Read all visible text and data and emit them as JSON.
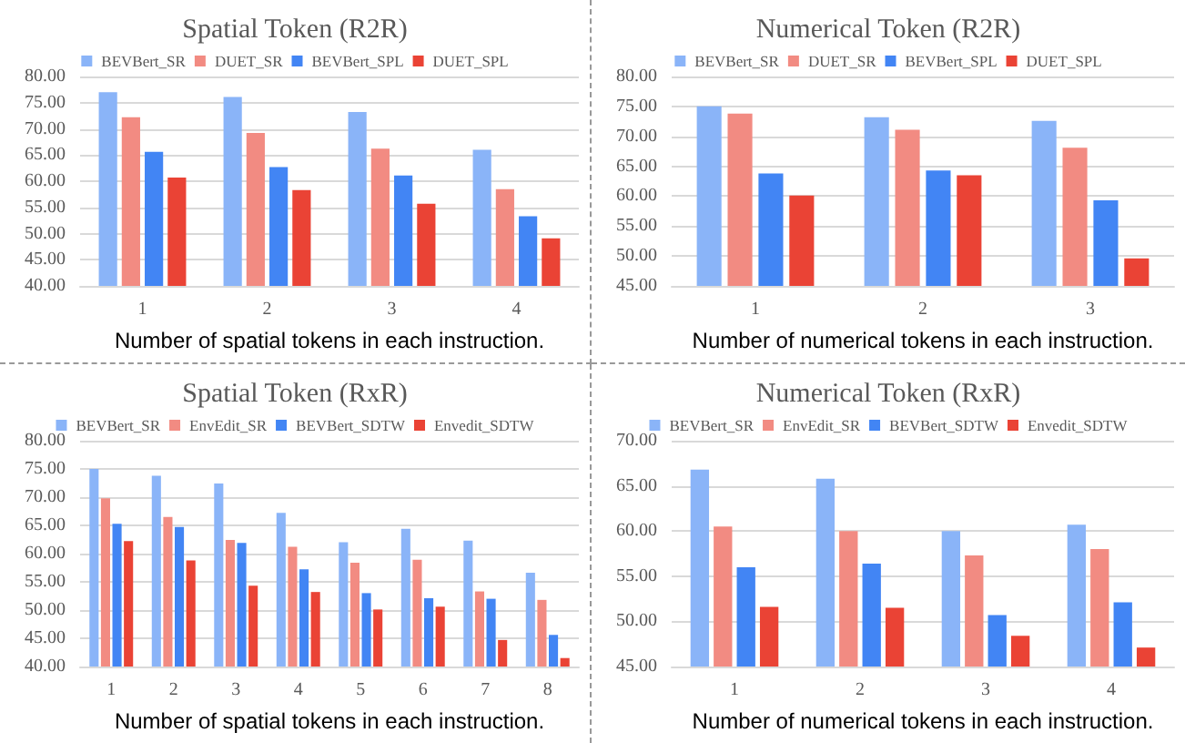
{
  "chart_data": [
    {
      "type": "bar",
      "title": "Spatial Token (R2R)",
      "xlabel": "Number of spatial tokens in each instruction.",
      "categories": [
        "1",
        "2",
        "3",
        "4"
      ],
      "series": [
        {
          "name": "BEVBert_SR",
          "color": "#8ab4f8",
          "values": [
            77.0,
            76.1,
            73.2,
            66.0
          ]
        },
        {
          "name": "DUET_SR",
          "color": "#f28b82",
          "values": [
            72.2,
            69.2,
            66.2,
            58.5
          ]
        },
        {
          "name": "BEVBert_SPL",
          "color": "#4285f4",
          "values": [
            65.6,
            62.7,
            61.1,
            53.3
          ]
        },
        {
          "name": "DUET_SPL",
          "color": "#ea4335",
          "values": [
            60.7,
            58.3,
            55.7,
            49.1
          ]
        }
      ],
      "ylim": [
        40,
        80
      ],
      "yticks": [
        {
          "value": 40,
          "label": "40.00"
        },
        {
          "value": 45,
          "label": "45.00"
        },
        {
          "value": 50,
          "label": "50.00"
        },
        {
          "value": 55,
          "label": "55.00"
        },
        {
          "value": 60,
          "label": "60.00"
        },
        {
          "value": 65,
          "label": "65.00"
        },
        {
          "value": 70,
          "label": "70.00"
        },
        {
          "value": 75,
          "label": "75.00"
        },
        {
          "value": 80,
          "label": "80.00"
        }
      ],
      "grid": "y",
      "legend": "top"
    },
    {
      "type": "bar",
      "title": "Numerical Token (R2R)",
      "xlabel": "Number of numerical tokens in each instruction.",
      "categories": [
        "1",
        "2",
        "3"
      ],
      "series": [
        {
          "name": "BEVBert_SR",
          "color": "#8ab4f8",
          "values": [
            75.0,
            73.2,
            72.6
          ]
        },
        {
          "name": "DUET_SR",
          "color": "#f28b82",
          "values": [
            73.8,
            71.1,
            68.1
          ]
        },
        {
          "name": "BEVBert_SPL",
          "color": "#4285f4",
          "values": [
            63.8,
            64.3,
            59.3
          ]
        },
        {
          "name": "DUET_SPL",
          "color": "#ea4335",
          "values": [
            60.1,
            63.5,
            49.6
          ]
        }
      ],
      "ylim": [
        45,
        80
      ],
      "yticks": [
        {
          "value": 45,
          "label": "45.00"
        },
        {
          "value": 50,
          "label": "50.00"
        },
        {
          "value": 55,
          "label": "55.00"
        },
        {
          "value": 60,
          "label": "60.00"
        },
        {
          "value": 65,
          "label": "65.00"
        },
        {
          "value": 70,
          "label": "70.00"
        },
        {
          "value": 75,
          "label": "75.00"
        },
        {
          "value": 80,
          "label": "80.00"
        }
      ],
      "grid": "y",
      "legend": "top"
    },
    {
      "type": "bar",
      "title": "Spatial Token (RxR)",
      "xlabel": "Number of spatial tokens in each instruction.",
      "categories": [
        "1",
        "2",
        "3",
        "4",
        "5",
        "6",
        "7",
        "8"
      ],
      "series": [
        {
          "name": "BEVBert_SR",
          "color": "#8ab4f8",
          "values": [
            75.0,
            73.8,
            72.4,
            67.2,
            62.0,
            64.4,
            62.3,
            56.6
          ]
        },
        {
          "name": "EnvEdit_SR",
          "color": "#f28b82",
          "values": [
            69.8,
            66.5,
            62.4,
            61.2,
            58.4,
            58.9,
            53.3,
            51.8
          ]
        },
        {
          "name": "BEVBert_SDTW",
          "color": "#4285f4",
          "values": [
            65.3,
            64.7,
            61.9,
            57.2,
            53.0,
            52.1,
            52.0,
            45.6
          ]
        },
        {
          "name": "Envedit_SDTW",
          "color": "#ea4335",
          "values": [
            62.2,
            58.8,
            54.3,
            53.2,
            50.1,
            50.6,
            44.7,
            41.5
          ]
        }
      ],
      "ylim": [
        40,
        80
      ],
      "yticks": [
        {
          "value": 40,
          "label": "40.00"
        },
        {
          "value": 45,
          "label": "45.00"
        },
        {
          "value": 50,
          "label": "50.00"
        },
        {
          "value": 55,
          "label": "55.00"
        },
        {
          "value": 60,
          "label": "60.00"
        },
        {
          "value": 65,
          "label": "65.00"
        },
        {
          "value": 70,
          "label": "70.00"
        },
        {
          "value": 75,
          "label": "75.00"
        },
        {
          "value": 80,
          "label": "80.00"
        }
      ],
      "grid": "y",
      "legend": "top"
    },
    {
      "type": "bar",
      "title": "Numerical Token (RxR)",
      "xlabel": "Number of numerical tokens in each instruction.",
      "categories": [
        "1",
        "2",
        "3",
        "4"
      ],
      "series": [
        {
          "name": "BEVBert_SR",
          "color": "#8ab4f8",
          "values": [
            66.8,
            65.8,
            60.0,
            60.7
          ]
        },
        {
          "name": "EnvEdit_SR",
          "color": "#f28b82",
          "values": [
            60.5,
            60.0,
            57.3,
            58.0
          ]
        },
        {
          "name": "BEVBert_SDTW",
          "color": "#4285f4",
          "values": [
            56.0,
            56.4,
            50.7,
            52.1
          ]
        },
        {
          "name": "Envedit_SDTW",
          "color": "#ea4335",
          "values": [
            51.6,
            51.5,
            48.4,
            47.1
          ]
        }
      ],
      "ylim": [
        45,
        70
      ],
      "yticks": [
        {
          "value": 45,
          "label": "45.00"
        },
        {
          "value": 50,
          "label": "50.00"
        },
        {
          "value": 55,
          "label": "55.00"
        },
        {
          "value": 60,
          "label": "60.00"
        },
        {
          "value": 65,
          "label": "65.00"
        },
        {
          "value": 70,
          "label": "70.00"
        }
      ],
      "grid": "y",
      "legend": "top"
    }
  ]
}
